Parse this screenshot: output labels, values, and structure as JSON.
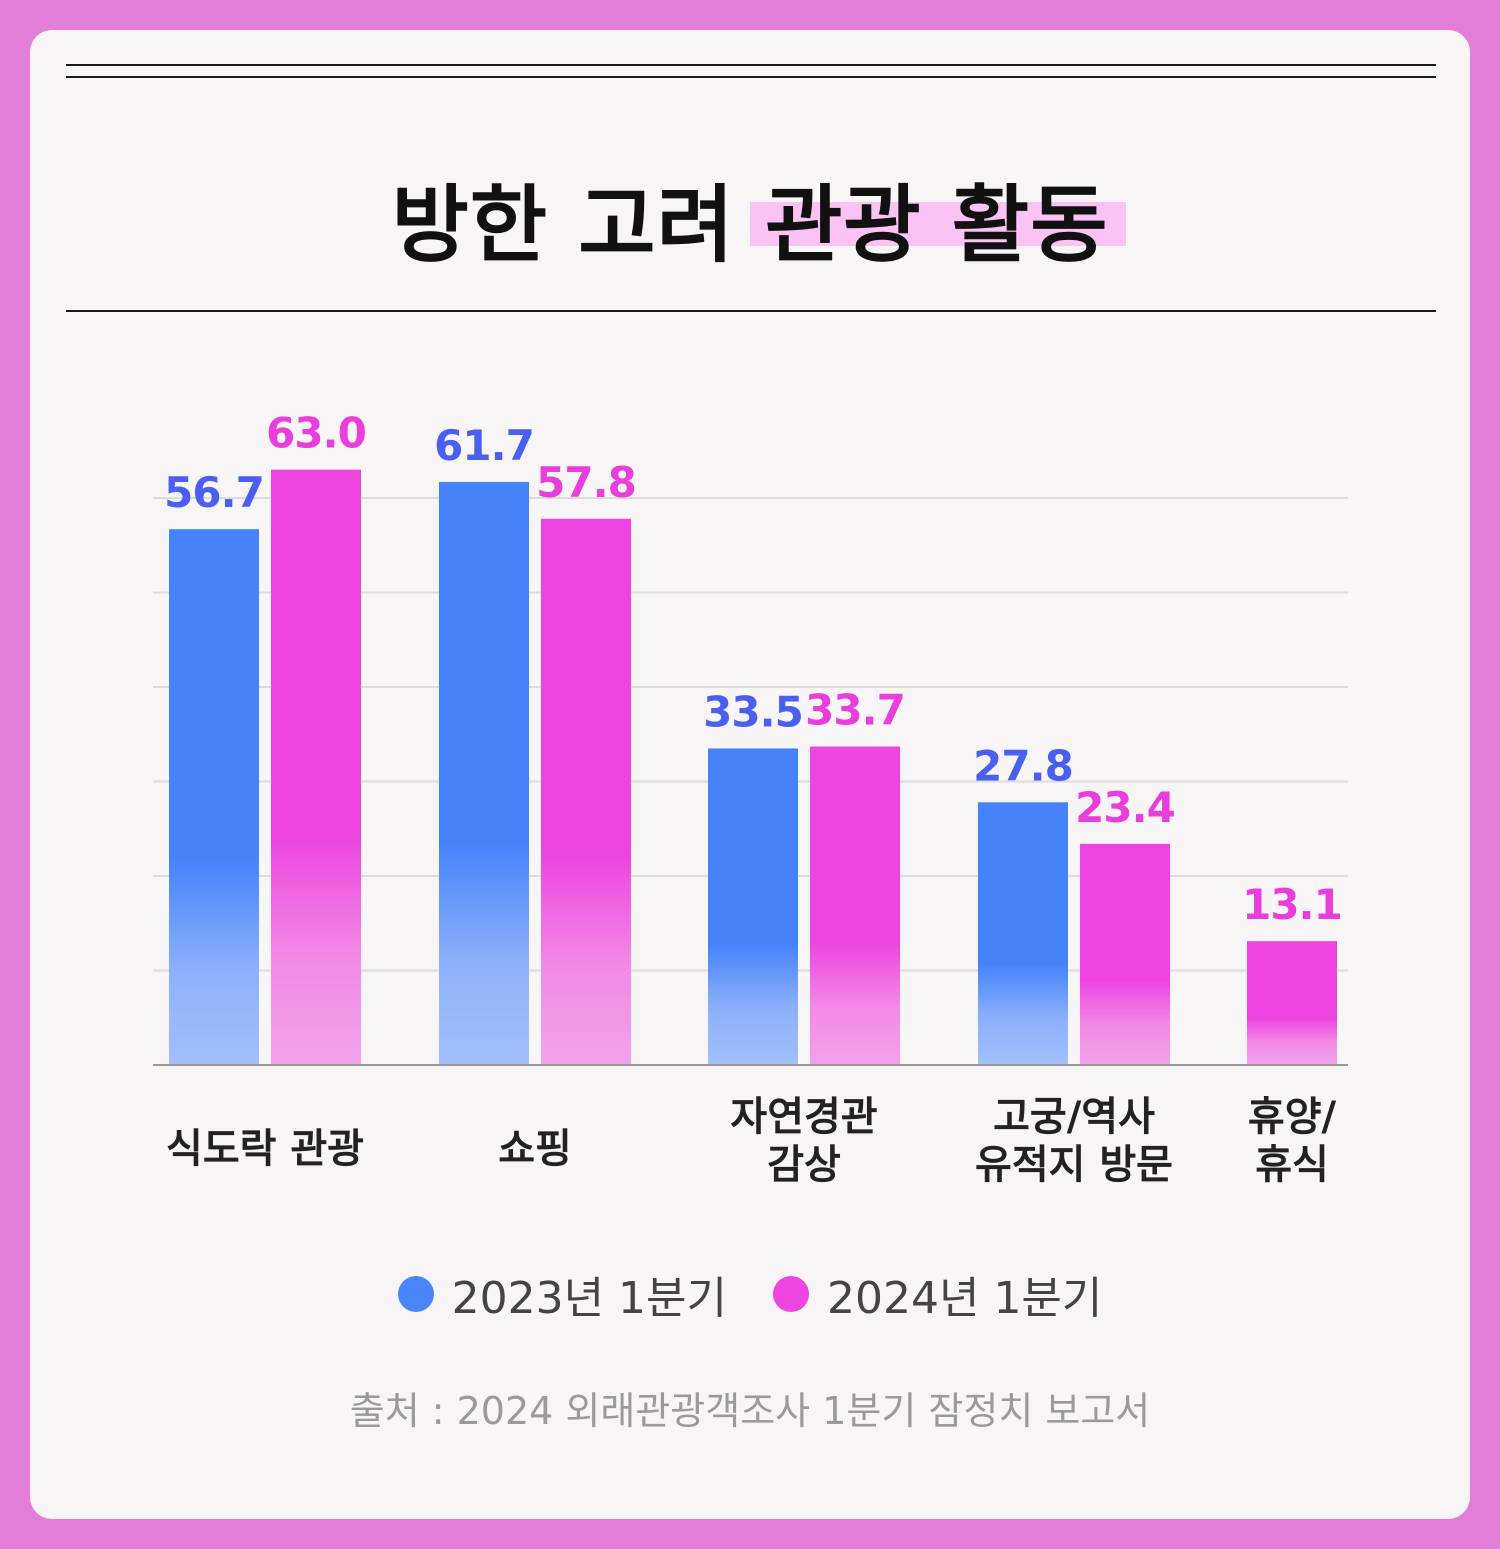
{
  "title": "방한 고려 관광 활동",
  "source": "출처 : 2024 외래관광객조사 1분기 잠정치 보고서",
  "colors": {
    "series_2023": "#4a86fb",
    "series_2024": "#ee45e0",
    "label_2023": "#4a5ff0",
    "label_2024": "#e93ddc",
    "highlight": "#fbc3f3",
    "frame": "#e37ed8"
  },
  "chart_data": {
    "type": "bar",
    "title": "방한 고려 관광 활동",
    "categories": [
      [
        "식도락 관광"
      ],
      [
        "쇼핑"
      ],
      [
        "자연경관",
        "감상"
      ],
      [
        "고궁/역사",
        "유적지 방문"
      ],
      [
        "휴양/",
        "휴식"
      ]
    ],
    "series": [
      {
        "name": "2023년 1분기",
        "values": [
          56.7,
          61.7,
          33.5,
          27.8,
          null
        ]
      },
      {
        "name": "2024년 1분기",
        "values": [
          63.0,
          57.8,
          33.7,
          23.4,
          13.1
        ]
      }
    ],
    "data_labels": [
      [
        "56.7",
        "61.7",
        "33.5",
        "27.8",
        null
      ],
      [
        "63.0",
        "57.8",
        "33.7",
        "23.4",
        "13.1"
      ]
    ],
    "ylim": [
      0,
      65
    ],
    "grid": true,
    "legend": "bottom"
  }
}
